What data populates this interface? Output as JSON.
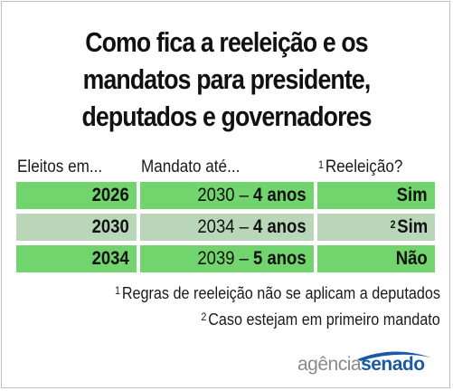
{
  "title": {
    "line1": "Como fica a reeleição e os",
    "line2": "mandatos para presidente,",
    "line3": "deputados e governadores"
  },
  "headers": {
    "col1": "Eleitos em...",
    "col2": "Mandato até...",
    "col3_mark": "1",
    "col3": "Reeleição?"
  },
  "rows": [
    {
      "year": "2026",
      "term_end": "2030 – ",
      "term_length": "4 anos",
      "reelection_mark": "",
      "reelection": "Sim"
    },
    {
      "year": "2030",
      "term_end": "2034 – ",
      "term_length": "4 anos",
      "reelection_mark": "2",
      "reelection": "Sim"
    },
    {
      "year": "2034",
      "term_end": "2039 – ",
      "term_length": "5 anos",
      "reelection_mark": "",
      "reelection": "Não"
    }
  ],
  "notes": [
    {
      "mark": "1",
      "text": "Regras de reeleição não se aplicam a deputados"
    },
    {
      "mark": "2",
      "text": "Caso estejam em primeiro mandato"
    }
  ],
  "logo": {
    "part1": "agência",
    "part2": "senado"
  },
  "colors": {
    "row_green": "#71d46d",
    "row_grey": "#b9d7b8",
    "logo_blue": "#1a5aa5"
  }
}
